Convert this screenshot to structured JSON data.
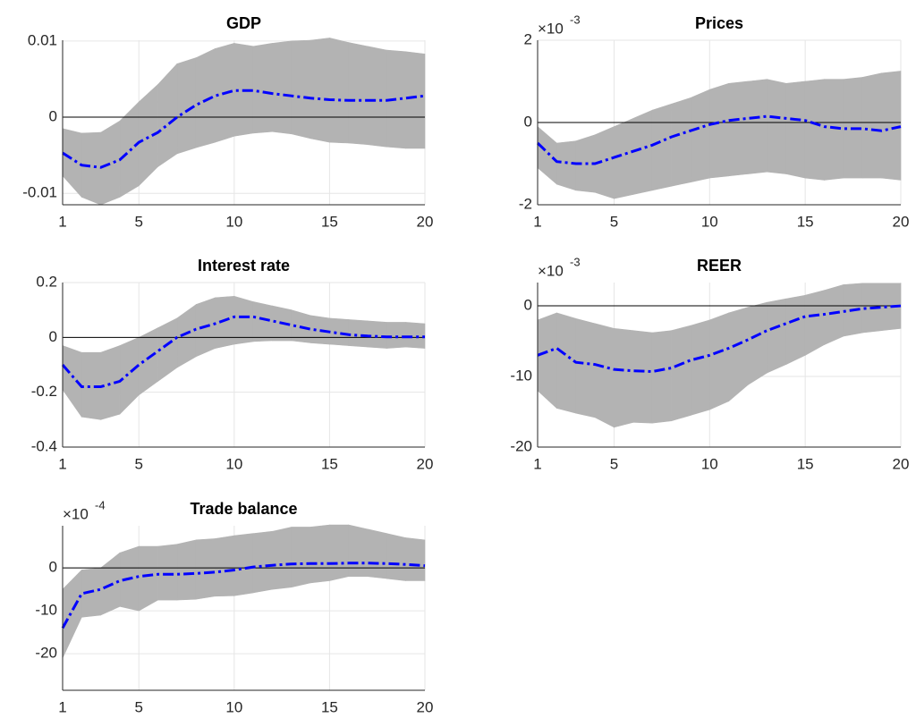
{
  "chart_data": [
    {
      "type": "line",
      "title": "GDP",
      "x": [
        1,
        2,
        3,
        4,
        5,
        6,
        7,
        8,
        9,
        10,
        11,
        12,
        13,
        14,
        15,
        16,
        17,
        18,
        19,
        20
      ],
      "values": [
        -0.0047,
        -0.0063,
        -0.0066,
        -0.0056,
        -0.0033,
        -0.002,
        0,
        0.0016,
        0.0028,
        0.0035,
        0.0035,
        0.0031,
        0.0028,
        0.0025,
        0.0023,
        0.0022,
        0.0022,
        0.0022,
        0.0025,
        0.0028
      ],
      "color": "#0000ff",
      "band": {
        "color": "#b3b3b3",
        "lower": [
          -0.0077,
          -0.0105,
          -0.0115,
          -0.0105,
          -0.009,
          -0.0065,
          -0.0048,
          -0.004,
          -0.0033,
          -0.0025,
          -0.0021,
          -0.0019,
          -0.0022,
          -0.0028,
          -0.0033,
          -0.0034,
          -0.0036,
          -0.0039,
          -0.0041,
          -0.0041
        ],
        "upper": [
          -0.0015,
          -0.0021,
          -0.002,
          -0.0005,
          0.002,
          0.0043,
          0.007,
          0.0078,
          0.009,
          0.0097,
          0.0093,
          0.0097,
          0.01,
          0.0101,
          0.0104,
          0.0098,
          0.0093,
          0.0088,
          0.0086,
          0.0083
        ]
      },
      "xlim": [
        1,
        20
      ],
      "xticks": [
        1,
        5,
        10,
        15,
        20
      ],
      "ylim": [
        -0.0115,
        0.0101
      ],
      "yticks": [
        -0.01,
        0,
        0.01
      ],
      "grid": true,
      "zero_line": true
    },
    {
      "type": "line",
      "title": "Prices",
      "multiplier": "×10",
      "exponent": "-3",
      "x": [
        1,
        2,
        3,
        4,
        5,
        6,
        7,
        8,
        9,
        10,
        11,
        12,
        13,
        14,
        15,
        16,
        17,
        18,
        19,
        20
      ],
      "values": [
        -0.5,
        -0.95,
        -1.0,
        -1.0,
        -0.85,
        -0.7,
        -0.55,
        -0.35,
        -0.2,
        -0.05,
        0.05,
        0.1,
        0.15,
        0.1,
        0.05,
        -0.1,
        -0.15,
        -0.15,
        -0.2,
        -0.1
      ],
      "color": "#0000ff",
      "band": {
        "color": "#b3b3b3",
        "lower": [
          -1.1,
          -1.5,
          -1.65,
          -1.7,
          -1.85,
          -1.75,
          -1.65,
          -1.55,
          -1.45,
          -1.35,
          -1.3,
          -1.25,
          -1.2,
          -1.25,
          -1.35,
          -1.4,
          -1.35,
          -1.35,
          -1.35,
          -1.4
        ],
        "upper": [
          -0.1,
          -0.5,
          -0.45,
          -0.3,
          -0.1,
          0.1,
          0.3,
          0.45,
          0.6,
          0.8,
          0.95,
          1.0,
          1.05,
          0.95,
          1.0,
          1.05,
          1.05,
          1.1,
          1.2,
          1.25
        ]
      },
      "xlim": [
        1,
        20
      ],
      "xticks": [
        1,
        5,
        10,
        15,
        20
      ],
      "ylim": [
        -2,
        2
      ],
      "yticks": [
        -2,
        0,
        2
      ],
      "grid": true,
      "zero_line": true
    },
    {
      "type": "line",
      "title": "Interest rate",
      "x": [
        1,
        2,
        3,
        4,
        5,
        6,
        7,
        8,
        9,
        10,
        11,
        12,
        13,
        14,
        15,
        16,
        17,
        18,
        19,
        20
      ],
      "values": [
        -0.1,
        -0.18,
        -0.18,
        -0.16,
        -0.1,
        -0.05,
        0,
        0.03,
        0.05,
        0.075,
        0.075,
        0.06,
        0.045,
        0.03,
        0.02,
        0.01,
        0.005,
        0.002,
        0.002,
        0.002
      ],
      "color": "#0000ff",
      "band": {
        "color": "#b3b3b3",
        "lower": [
          -0.19,
          -0.29,
          -0.3,
          -0.28,
          -0.21,
          -0.16,
          -0.11,
          -0.07,
          -0.04,
          -0.025,
          -0.015,
          -0.012,
          -0.012,
          -0.02,
          -0.025,
          -0.03,
          -0.035,
          -0.04,
          -0.035,
          -0.04
        ],
        "upper": [
          -0.03,
          -0.055,
          -0.055,
          -0.03,
          0,
          0.035,
          0.07,
          0.12,
          0.145,
          0.15,
          0.13,
          0.115,
          0.1,
          0.08,
          0.07,
          0.065,
          0.06,
          0.055,
          0.055,
          0.05
        ]
      },
      "xlim": [
        1,
        20
      ],
      "xticks": [
        1,
        5,
        10,
        15,
        20
      ],
      "ylim": [
        -0.4,
        0.2
      ],
      "yticks": [
        -0.4,
        -0.2,
        0,
        0.2
      ],
      "grid": true,
      "zero_line": true
    },
    {
      "type": "line",
      "title": "REER",
      "multiplier": "×10",
      "exponent": "-3",
      "x": [
        1,
        2,
        3,
        4,
        5,
        6,
        7,
        8,
        9,
        10,
        11,
        12,
        13,
        14,
        15,
        16,
        17,
        18,
        19,
        20
      ],
      "values": [
        -7,
        -6,
        -8,
        -8.3,
        -9,
        -9.2,
        -9.3,
        -8.8,
        -7.7,
        -7,
        -6,
        -4.8,
        -3.5,
        -2.5,
        -1.5,
        -1.2,
        -0.8,
        -0.4,
        -0.2,
        0
      ],
      "color": "#0000ff",
      "band": {
        "color": "#b3b3b3",
        "lower": [
          -12,
          -14.5,
          -15.2,
          -15.8,
          -17.2,
          -16.5,
          -16.6,
          -16.3,
          -15.5,
          -14.7,
          -13.5,
          -11.2,
          -9.5,
          -8.3,
          -7,
          -5.5,
          -4.3,
          -3.8,
          -3.5,
          -3.2
        ],
        "upper": [
          -2,
          -1,
          -1.8,
          -2.5,
          -3.2,
          -3.5,
          -3.8,
          -3.5,
          -2.8,
          -2,
          -1,
          -0.2,
          0.5,
          1,
          1.5,
          2.2,
          3,
          3.2,
          3.2,
          3.2
        ]
      },
      "xlim": [
        1,
        20
      ],
      "xticks": [
        1,
        5,
        10,
        15,
        20
      ],
      "ylim": [
        -20,
        3.3
      ],
      "yticks": [
        -20,
        -10,
        0
      ],
      "grid": true,
      "zero_line": true
    },
    {
      "type": "line",
      "title": "Trade balance",
      "multiplier": "×10",
      "exponent": "-4",
      "x": [
        1,
        2,
        3,
        4,
        5,
        6,
        7,
        8,
        9,
        10,
        11,
        12,
        13,
        14,
        15,
        16,
        17,
        18,
        19,
        20
      ],
      "values": [
        -14,
        -6,
        -5,
        -3,
        -2,
        -1.5,
        -1.5,
        -1.3,
        -1,
        -0.5,
        0.2,
        0.6,
        0.9,
        1,
        1,
        1.1,
        1.1,
        1,
        0.8,
        0.5
      ],
      "color": "#0000ff",
      "band": {
        "color": "#b3b3b3",
        "lower": [
          -21,
          -11.5,
          -11,
          -9,
          -10,
          -7.5,
          -7.5,
          -7.3,
          -6.6,
          -6.5,
          -5.8,
          -5,
          -4.5,
          -3.5,
          -3,
          -2,
          -2,
          -2.5,
          -3,
          -3
        ],
        "upper": [
          -5,
          -0.5,
          0,
          3.5,
          5,
          5,
          5.5,
          6.5,
          6.8,
          7.5,
          8,
          8.5,
          9.5,
          9.5,
          10,
          10,
          9,
          8,
          7,
          6.5
        ]
      },
      "xlim": [
        1,
        20
      ],
      "xticks": [
        1,
        5,
        10,
        15,
        20
      ],
      "ylim": [
        -28.5,
        9.8
      ],
      "yticks": [
        -20,
        -10,
        0
      ],
      "grid": true,
      "zero_line": true
    }
  ]
}
